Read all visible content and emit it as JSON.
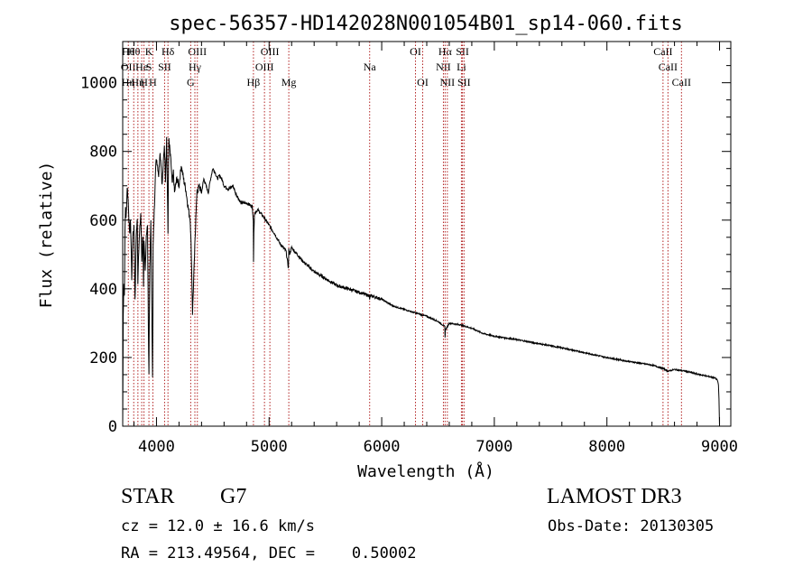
{
  "chart_data": {
    "type": "line",
    "title": "spec-56357-HD142028N001054B01_sp14-060.fits",
    "xlabel": "Wavelength (Å)",
    "ylabel": "Flux (relative)",
    "xlim": [
      3700,
      9100
    ],
    "ylim": [
      0,
      1120
    ],
    "xticks": [
      4000,
      5000,
      6000,
      7000,
      8000,
      9000
    ],
    "yticks": [
      0,
      200,
      400,
      600,
      800,
      1000
    ],
    "series": [
      {
        "name": "spectrum",
        "x": [
          3700,
          3705,
          3710,
          3715,
          3720,
          3725,
          3730,
          3740,
          3750,
          3760,
          3770,
          3780,
          3790,
          3800,
          3810,
          3820,
          3830,
          3835,
          3840,
          3850,
          3860,
          3870,
          3880,
          3885,
          3890,
          3900,
          3910,
          3920,
          3930,
          3933,
          3935,
          3940,
          3950,
          3960,
          3965,
          3968,
          3970,
          3980,
          3990,
          4000,
          4010,
          4020,
          4030,
          4040,
          4050,
          4060,
          4070,
          4080,
          4090,
          4100,
          4102,
          4105,
          4110,
          4120,
          4130,
          4140,
          4150,
          4160,
          4180,
          4200,
          4220,
          4240,
          4260,
          4280,
          4300,
          4310,
          4320,
          4330,
          4340,
          4345,
          4350,
          4360,
          4380,
          4400,
          4420,
          4440,
          4460,
          4480,
          4500,
          4520,
          4540,
          4560,
          4580,
          4600,
          4640,
          4680,
          4700,
          4750,
          4800,
          4850,
          4860,
          4862,
          4865,
          4870,
          4900,
          4950,
          5000,
          5050,
          5100,
          5150,
          5172,
          5175,
          5180,
          5200,
          5300,
          5400,
          5500,
          5600,
          5700,
          5800,
          5890,
          5893,
          5900,
          6000,
          6100,
          6200,
          6300,
          6400,
          6500,
          6560,
          6563,
          6566,
          6600,
          6700,
          6800,
          6900,
          7000,
          7200,
          7400,
          7600,
          7800,
          8000,
          8200,
          8400,
          8500,
          8542,
          8600,
          8700,
          8800,
          8900,
          8960,
          8980,
          8985,
          8990,
          8995,
          9000
        ],
        "y": [
          0,
          320,
          420,
          380,
          560,
          640,
          600,
          700,
          650,
          560,
          600,
          430,
          560,
          580,
          360,
          560,
          600,
          420,
          500,
          560,
          620,
          480,
          560,
          400,
          530,
          450,
          560,
          580,
          220,
          150,
          260,
          450,
          600,
          280,
          150,
          320,
          520,
          620,
          740,
          780,
          760,
          730,
          800,
          770,
          700,
          760,
          820,
          720,
          840,
          620,
          560,
          720,
          830,
          800,
          760,
          700,
          740,
          680,
          720,
          700,
          760,
          720,
          690,
          640,
          600,
          500,
          330,
          420,
          520,
          560,
          620,
          680,
          700,
          680,
          720,
          700,
          680,
          720,
          750,
          740,
          720,
          730,
          720,
          700,
          690,
          700,
          680,
          650,
          650,
          640,
          600,
          480,
          560,
          620,
          630,
          610,
          585,
          560,
          530,
          510,
          460,
          520,
          500,
          520,
          480,
          450,
          430,
          410,
          400,
          390,
          380,
          370,
          380,
          370,
          350,
          340,
          330,
          320,
          305,
          290,
          260,
          280,
          300,
          295,
          285,
          270,
          262,
          252,
          240,
          228,
          214,
          200,
          188,
          178,
          168,
          160,
          165,
          160,
          152,
          145,
          140,
          135,
          130,
          120,
          80,
          0
        ]
      }
    ],
    "lines": [
      {
        "wl": 3750,
        "top": "Hθ",
        "mid": "OII",
        "bot": "Hη"
      },
      {
        "wl": 3798,
        "top": "Hθ"
      },
      {
        "wl": 3835,
        "top": "",
        "mid": "",
        "bot": "Hη"
      },
      {
        "wl": 3869,
        "mid": "He"
      },
      {
        "wl": 3889,
        "bot": "H"
      },
      {
        "wl": 3933,
        "top": "K",
        "mid": "S"
      },
      {
        "wl": 3968,
        "bot": "H"
      },
      {
        "wl": 4072,
        "mid": "SII"
      },
      {
        "wl": 4102,
        "top": "Hδ"
      },
      {
        "wl": 4304,
        "bot": "G"
      },
      {
        "wl": 4341,
        "mid": "Hγ"
      },
      {
        "wl": 4363,
        "top": "OIII"
      },
      {
        "wl": 4861,
        "bot": "Hβ"
      },
      {
        "wl": 4959,
        "mid": "OIII"
      },
      {
        "wl": 5007,
        "top": "OIII"
      },
      {
        "wl": 5175,
        "bot": "Mg"
      },
      {
        "wl": 5893,
        "mid": "Na"
      },
      {
        "wl": 6300,
        "top": "OI"
      },
      {
        "wl": 6364,
        "bot": "OI"
      },
      {
        "wl": 6548,
        "mid": "NII"
      },
      {
        "wl": 6563,
        "top": "Hα"
      },
      {
        "wl": 6583,
        "bot": "NII"
      },
      {
        "wl": 6708,
        "mid": "Li"
      },
      {
        "wl": 6717,
        "top": "SII"
      },
      {
        "wl": 6731,
        "bot": "SII"
      },
      {
        "wl": 8498,
        "top": "CaII"
      },
      {
        "wl": 8542,
        "mid": "CaII"
      },
      {
        "wl": 8662,
        "bot": "CaII"
      }
    ]
  },
  "info": {
    "class_label": "STAR",
    "subclass": "G7",
    "cz": "cz = 12.0 ± 16.6 km/s",
    "radec": "RA = 213.49564, DEC =    0.50002",
    "survey": "LAMOST DR3",
    "obsdate": "Obs-Date: 20130305"
  },
  "colors": {
    "spectrum": "#000000",
    "line_marker": "#b22222",
    "axis": "#000000"
  }
}
